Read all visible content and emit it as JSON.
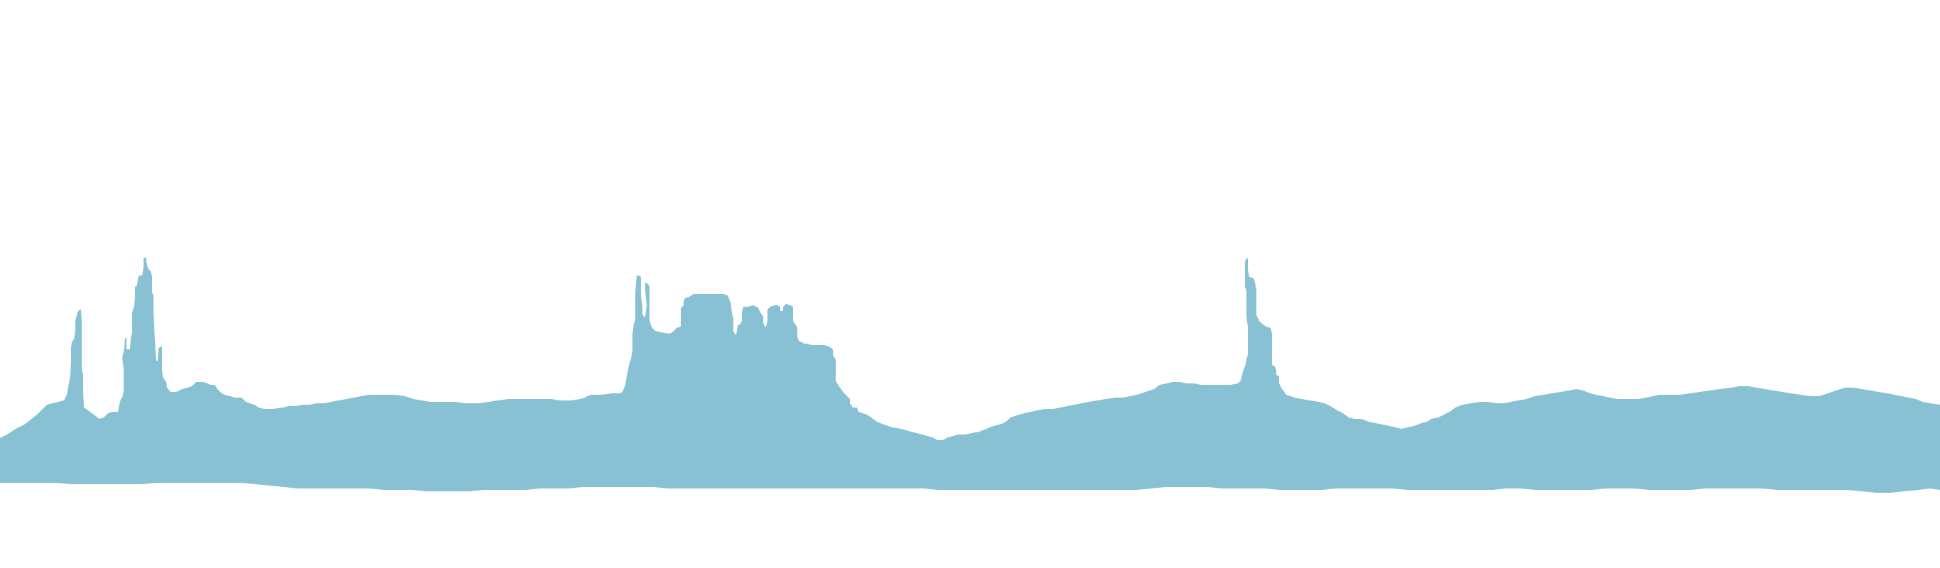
{
  "scene": {
    "description_icon": "desert-butte-skyline-icon",
    "background_color": "#ffffff",
    "silhouette_color": "#88c1d4"
  }
}
